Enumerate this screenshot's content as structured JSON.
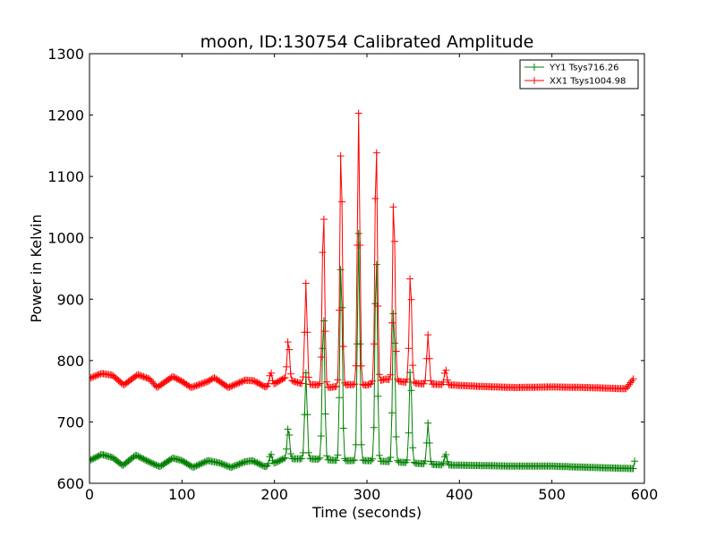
{
  "chart_data": {
    "type": "line",
    "title": "moon, ID:130754 Calibrated Amplitude",
    "xlabel": "Time (seconds)",
    "ylabel": "Power in Kelvin",
    "xlim": [
      0,
      600
    ],
    "ylim": [
      600,
      1300
    ],
    "xticks": [
      0,
      100,
      200,
      300,
      400,
      500,
      600
    ],
    "yticks": [
      600,
      700,
      800,
      900,
      1000,
      1100,
      1200,
      1300
    ],
    "grid": false,
    "legend_position": "top-right",
    "marker": "plus",
    "series": [
      {
        "name": "YY1 Tsys716.26",
        "color": "#008000",
        "baseline": [
          [
            0,
            637
          ],
          [
            13,
            647
          ],
          [
            25,
            642
          ],
          [
            36,
            629
          ],
          [
            50,
            646
          ],
          [
            63,
            636
          ],
          [
            76,
            627
          ],
          [
            90,
            641
          ],
          [
            100,
            637
          ],
          [
            112,
            626
          ],
          [
            128,
            637
          ],
          [
            141,
            633
          ],
          [
            153,
            626
          ],
          [
            168,
            635
          ],
          [
            176,
            637
          ],
          [
            190,
            627
          ],
          [
            200,
            633
          ],
          [
            210,
            640
          ],
          [
            240,
            640
          ],
          [
            270,
            637
          ],
          [
            300,
            637
          ],
          [
            330,
            635
          ],
          [
            360,
            632
          ],
          [
            380,
            630
          ],
          [
            420,
            629
          ],
          [
            460,
            628
          ],
          [
            500,
            628
          ],
          [
            540,
            626
          ],
          [
            588,
            624
          ],
          [
            590,
            640
          ]
        ],
        "peaks": [
          [
            196,
            648
          ],
          [
            215,
            692
          ],
          [
            234,
            780
          ],
          [
            253,
            882
          ],
          [
            272,
            972
          ],
          [
            291,
            1007
          ],
          [
            310,
            981
          ],
          [
            329,
            895
          ],
          [
            347,
            792
          ],
          [
            366,
            698
          ],
          [
            385,
            648
          ]
        ]
      },
      {
        "name": "XX1 Tsys1004.98",
        "color": "#ff0000",
        "baseline": [
          [
            0,
            771
          ],
          [
            13,
            779
          ],
          [
            25,
            776
          ],
          [
            37,
            760
          ],
          [
            52,
            777
          ],
          [
            65,
            770
          ],
          [
            73,
            756
          ],
          [
            90,
            774
          ],
          [
            100,
            766
          ],
          [
            110,
            756
          ],
          [
            128,
            766
          ],
          [
            135,
            772
          ],
          [
            150,
            756
          ],
          [
            168,
            768
          ],
          [
            178,
            767
          ],
          [
            190,
            757
          ],
          [
            200,
            762
          ],
          [
            210,
            771
          ],
          [
            230,
            762
          ],
          [
            250,
            760
          ],
          [
            260,
            756
          ],
          [
            280,
            761
          ],
          [
            300,
            760
          ],
          [
            320,
            770
          ],
          [
            340,
            765
          ],
          [
            360,
            762
          ],
          [
            380,
            761
          ],
          [
            420,
            758
          ],
          [
            460,
            756
          ],
          [
            500,
            757
          ],
          [
            540,
            756
          ],
          [
            580,
            754
          ],
          [
            588,
            770
          ]
        ],
        "peaks": [
          [
            196,
            781
          ],
          [
            215,
            835
          ],
          [
            234,
            926
          ],
          [
            253,
            1051
          ],
          [
            272,
            1162
          ],
          [
            291,
            1203
          ],
          [
            310,
            1167
          ],
          [
            329,
            1072
          ],
          [
            347,
            946
          ],
          [
            366,
            842
          ],
          [
            385,
            786
          ]
        ]
      }
    ]
  }
}
